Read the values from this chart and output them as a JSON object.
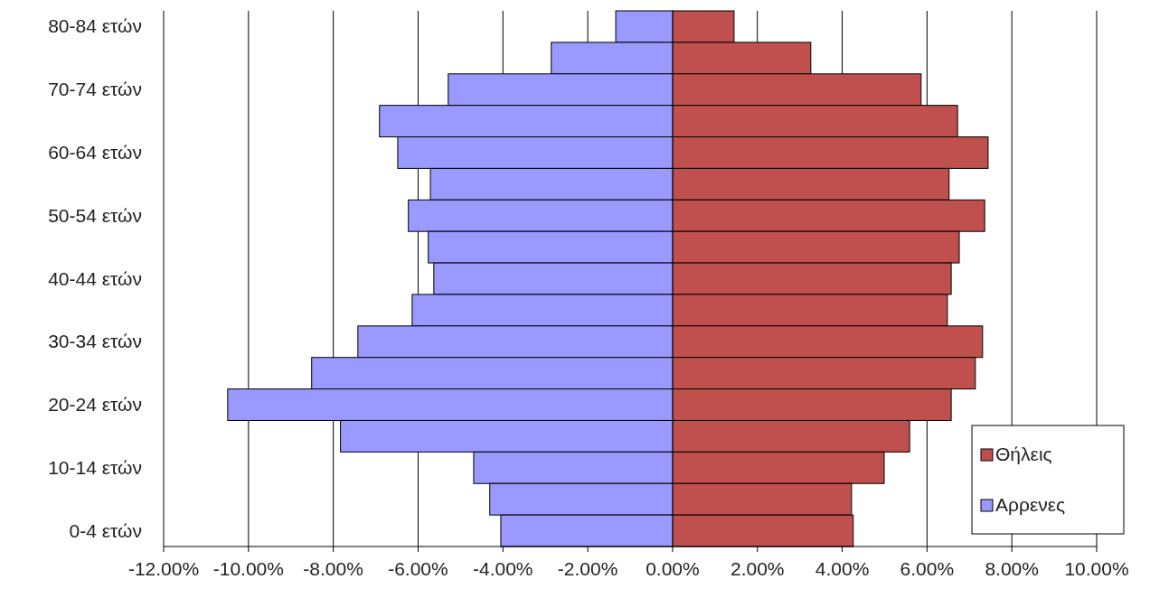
{
  "chart_data": {
    "type": "bar",
    "orientation": "horizontal",
    "categories": [
      "80-84 ετών",
      null,
      "70-74 ετών",
      null,
      "60-64 ετών",
      null,
      "50-54 ετών",
      null,
      "40-44 ετών",
      null,
      "30-34 ετών",
      null,
      "20-24 ετών",
      null,
      "10-14 ετών",
      null,
      "0-4 ετών"
    ],
    "series": [
      {
        "name": "Θήλεις",
        "color": "#c0504d",
        "values": [
          1.45,
          3.26,
          5.86,
          6.72,
          7.44,
          6.52,
          7.36,
          6.76,
          6.57,
          6.48,
          7.31,
          7.14,
          6.57,
          5.59,
          4.99,
          4.22,
          4.26
        ]
      },
      {
        "name": "Αρρενες",
        "color": "#9999ff",
        "values": [
          -1.34,
          -2.86,
          -5.29,
          -6.91,
          -6.48,
          -5.71,
          -6.23,
          -5.76,
          -5.63,
          -6.14,
          -7.42,
          -8.51,
          -10.49,
          -7.83,
          -4.69,
          -4.31,
          -4.05
        ]
      }
    ],
    "xlim": [
      -12,
      10
    ],
    "xticks": [
      {
        "value": -12,
        "label": "-12.00%"
      },
      {
        "value": -10,
        "label": "-10.00%"
      },
      {
        "value": -8,
        "label": "-8.00%"
      },
      {
        "value": -6,
        "label": "-6.00%"
      },
      {
        "value": -4,
        "label": "-4.00%"
      },
      {
        "value": -2,
        "label": "-2.00%"
      },
      {
        "value": 0,
        "label": "0.00%"
      },
      {
        "value": 2,
        "label": "2.00%"
      },
      {
        "value": 4,
        "label": "4.00%"
      },
      {
        "value": 6,
        "label": "6.00%"
      },
      {
        "value": 8,
        "label": "8.00%"
      },
      {
        "value": 10,
        "label": "10.00%"
      }
    ],
    "stacked": true,
    "grid": "x",
    "legend": "bottom right"
  }
}
